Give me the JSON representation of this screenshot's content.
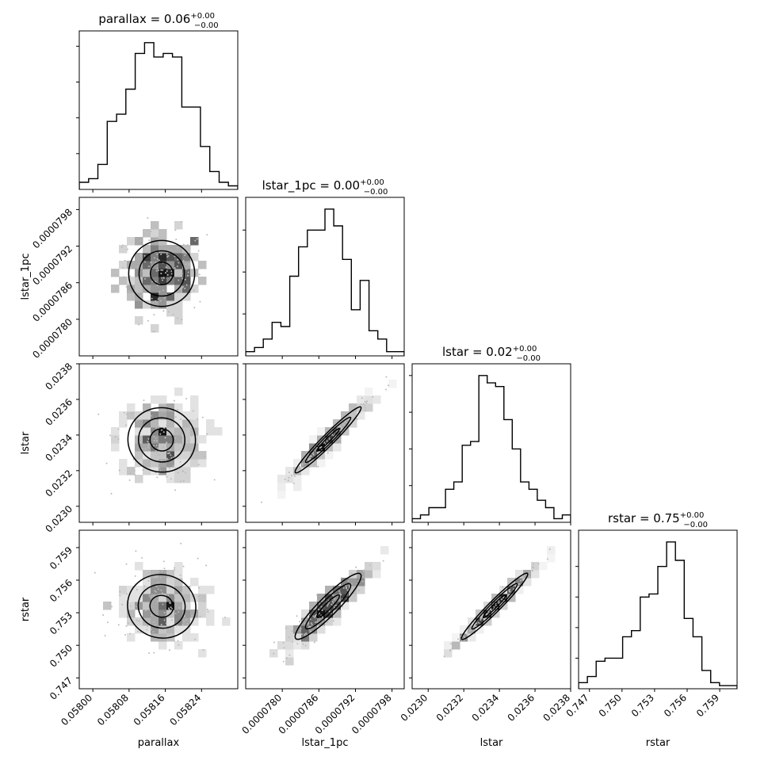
{
  "chart_data": {
    "type": "corner",
    "parameters": [
      {
        "name": "parallax",
        "title": "parallax = 0.06",
        "sup": "+0.00",
        "sub": "−0.00",
        "range": [
          0.05797,
          0.05832
        ],
        "ticks": [
          "0.05800",
          "0.05808",
          "0.05816",
          "0.05824"
        ],
        "tick_values": [
          0.058,
          0.05808,
          0.05816,
          0.05824
        ],
        "xlabel": "parallax",
        "ylabel": "",
        "hist": [
          2,
          3,
          7,
          19,
          21,
          28,
          38,
          41,
          37,
          38,
          37,
          23,
          23,
          12,
          5,
          2,
          1
        ]
      },
      {
        "name": "lstar_1pc",
        "title": "lstar_1pc = 0.00",
        "sup": "+0.00",
        "sub": "−0.00",
        "range": [
          7.74e-05,
          8e-05
        ],
        "ticks": [
          "0.0000780",
          "0.0000786",
          "0.0000792",
          "0.0000798"
        ],
        "tick_values": [
          7.8e-05,
          7.86e-05,
          7.92e-05,
          7.98e-05
        ],
        "xlabel": "lstar_1pc",
        "ylabel": "lstar_1pc",
        "hist": [
          1,
          2,
          4,
          8,
          7,
          19,
          26,
          30,
          30,
          35,
          31,
          23,
          11,
          18,
          6,
          4,
          1,
          1
        ]
      },
      {
        "name": "lstar",
        "title": "lstar = 0.02",
        "sup": "+0.00",
        "sub": "−0.00",
        "range": [
          0.02291,
          0.0238
        ],
        "ticks": [
          "0.0230",
          "0.0232",
          "0.0234",
          "0.0236",
          "0.0238"
        ],
        "tick_values": [
          0.023,
          0.0232,
          0.0234,
          0.0236,
          0.0238
        ],
        "xlabel": "lstar",
        "ylabel": "lstar",
        "hist": [
          1,
          2,
          4,
          4,
          9,
          11,
          21,
          22,
          40,
          38,
          37,
          28,
          20,
          11,
          9,
          6,
          4,
          1,
          2
        ]
      },
      {
        "name": "rstar",
        "title": "rstar = 0.75",
        "sup": "+0.00",
        "sub": "−0.00",
        "range": [
          0.746,
          0.7606
        ],
        "ticks": [
          "0.747",
          "0.750",
          "0.753",
          "0.756",
          "0.759"
        ],
        "tick_values": [
          0.747,
          0.75,
          0.753,
          0.756,
          0.759
        ],
        "xlabel": "rstar",
        "ylabel": "rstar",
        "hist": [
          2,
          4,
          9,
          10,
          10,
          17,
          19,
          30,
          31,
          40,
          48,
          42,
          23,
          17,
          6,
          2,
          1,
          1
        ]
      }
    ],
    "correlations": {
      "1-0": 0.0,
      "2-0": -0.05,
      "2-1": 0.97,
      "3-0": -0.08,
      "3-1": 0.92,
      "3-2": 0.99
    }
  }
}
